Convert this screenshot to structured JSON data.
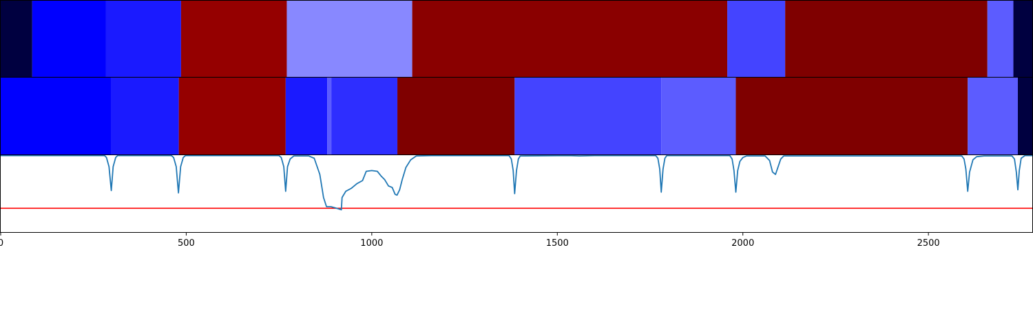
{
  "chart_data": [
    {
      "type": "heatmap",
      "title": "",
      "xlim": [
        0,
        2780
      ],
      "colors": {
        "deep_blue": "#0000ff",
        "mid_blue": "#1a1aff",
        "blue2": "#2e2eff",
        "light_blue": "#8888ff",
        "violet": "#4444ff",
        "violet2": "#5c5cff",
        "dark_red": "#8a0000",
        "red2": "#950000",
        "maroon": "#7f0000",
        "navy": "#000040"
      },
      "segments": [
        {
          "x0": 0,
          "x1": 85,
          "color": "#000040"
        },
        {
          "x0": 85,
          "x1": 283,
          "color": "#0000ff"
        },
        {
          "x0": 283,
          "x1": 486,
          "color": "#1a1aff"
        },
        {
          "x0": 486,
          "x1": 771,
          "color": "#950000"
        },
        {
          "x0": 771,
          "x1": 1109,
          "color": "#8888ff"
        },
        {
          "x0": 1109,
          "x1": 1958,
          "color": "#8a0000"
        },
        {
          "x0": 1958,
          "x1": 2114,
          "color": "#4444ff"
        },
        {
          "x0": 2114,
          "x1": 2659,
          "color": "#7f0000"
        },
        {
          "x0": 2659,
          "x1": 2729,
          "color": "#5c5cff"
        },
        {
          "x0": 2729,
          "x1": 2780,
          "color": "#000040"
        }
      ]
    },
    {
      "type": "heatmap",
      "title": "",
      "xlim": [
        0,
        2780
      ],
      "segments": [
        {
          "x0": 0,
          "x1": 298,
          "color": "#0000ff"
        },
        {
          "x0": 298,
          "x1": 480,
          "color": "#1a1aff"
        },
        {
          "x0": 480,
          "x1": 768,
          "color": "#950000"
        },
        {
          "x0": 768,
          "x1": 880,
          "color": "#1a1aff"
        },
        {
          "x0": 880,
          "x1": 891,
          "color": "#5c5cff"
        },
        {
          "x0": 891,
          "x1": 1069,
          "color": "#2e2eff"
        },
        {
          "x0": 1069,
          "x1": 1385,
          "color": "#7f0000"
        },
        {
          "x0": 1385,
          "x1": 1780,
          "color": "#4444ff"
        },
        {
          "x0": 1780,
          "x1": 1981,
          "color": "#5c5cff"
        },
        {
          "x0": 1981,
          "x1": 2606,
          "color": "#7f0000"
        },
        {
          "x0": 2606,
          "x1": 2741,
          "color": "#5c5cff"
        },
        {
          "x0": 2741,
          "x1": 2780,
          "color": "#000040"
        }
      ]
    },
    {
      "type": "line",
      "title": "",
      "xlabel": "",
      "ylabel": "",
      "xlim": [
        0,
        2780
      ],
      "ylim": [
        0,
        1
      ],
      "grid": false,
      "x_ticks": [
        0,
        500,
        1000,
        1500,
        2000,
        2500
      ],
      "x_tick_labels": [
        "0",
        "500",
        "1000",
        "1500",
        "2000",
        "2500"
      ],
      "line_color": "#1f77b4",
      "threshold": {
        "value": 0.31,
        "color": "#ff0000"
      },
      "series": [
        {
          "values": [
            [
              0,
              0.995
            ],
            [
              280,
              0.995
            ],
            [
              285,
              0.97
            ],
            [
              292,
              0.85
            ],
            [
              298,
              0.54
            ],
            [
              303,
              0.85
            ],
            [
              310,
              0.97
            ],
            [
              315,
              0.995
            ],
            [
              460,
              0.995
            ],
            [
              466,
              0.97
            ],
            [
              473,
              0.85
            ],
            [
              479,
              0.51
            ],
            [
              485,
              0.85
            ],
            [
              492,
              0.97
            ],
            [
              498,
              0.995
            ],
            [
              750,
              0.995
            ],
            [
              756,
              0.97
            ],
            [
              763,
              0.85
            ],
            [
              768,
              0.53
            ],
            [
              773,
              0.85
            ],
            [
              780,
              0.95
            ],
            [
              790,
              0.99
            ],
            [
              830,
              0.99
            ],
            [
              845,
              0.96
            ],
            [
              860,
              0.75
            ],
            [
              870,
              0.45
            ],
            [
              878,
              0.33
            ],
            [
              890,
              0.33
            ],
            [
              905,
              0.31
            ],
            [
              918,
              0.29
            ],
            [
              920,
              0.45
            ],
            [
              930,
              0.53
            ],
            [
              945,
              0.57
            ],
            [
              960,
              0.63
            ],
            [
              975,
              0.67
            ],
            [
              985,
              0.79
            ],
            [
              1000,
              0.8
            ],
            [
              1015,
              0.79
            ],
            [
              1025,
              0.73
            ],
            [
              1035,
              0.68
            ],
            [
              1045,
              0.6
            ],
            [
              1055,
              0.58
            ],
            [
              1063,
              0.49
            ],
            [
              1068,
              0.48
            ],
            [
              1075,
              0.55
            ],
            [
              1082,
              0.68
            ],
            [
              1092,
              0.84
            ],
            [
              1105,
              0.94
            ],
            [
              1120,
              0.99
            ],
            [
              1160,
              0.995
            ],
            [
              1370,
              0.995
            ],
            [
              1376,
              0.95
            ],
            [
              1381,
              0.8
            ],
            [
              1385,
              0.5
            ],
            [
              1390,
              0.8
            ],
            [
              1395,
              0.95
            ],
            [
              1400,
              0.99
            ],
            [
              1530,
              0.995
            ],
            [
              1560,
              0.99
            ],
            [
              1600,
              0.995
            ],
            [
              1765,
              0.995
            ],
            [
              1771,
              0.96
            ],
            [
              1776,
              0.82
            ],
            [
              1780,
              0.52
            ],
            [
              1785,
              0.82
            ],
            [
              1790,
              0.96
            ],
            [
              1795,
              0.995
            ],
            [
              1965,
              0.995
            ],
            [
              1971,
              0.95
            ],
            [
              1976,
              0.8
            ],
            [
              1981,
              0.52
            ],
            [
              1986,
              0.8
            ],
            [
              1992,
              0.92
            ],
            [
              2000,
              0.97
            ],
            [
              2010,
              0.99
            ],
            [
              2060,
              0.99
            ],
            [
              2072,
              0.93
            ],
            [
              2080,
              0.78
            ],
            [
              2088,
              0.75
            ],
            [
              2095,
              0.85
            ],
            [
              2102,
              0.95
            ],
            [
              2110,
              0.99
            ],
            [
              2590,
              0.99
            ],
            [
              2596,
              0.95
            ],
            [
              2601,
              0.82
            ],
            [
              2606,
              0.53
            ],
            [
              2611,
              0.78
            ],
            [
              2620,
              0.94
            ],
            [
              2630,
              0.98
            ],
            [
              2650,
              0.99
            ],
            [
              2725,
              0.99
            ],
            [
              2732,
              0.95
            ],
            [
              2737,
              0.78
            ],
            [
              2741,
              0.55
            ],
            [
              2745,
              0.8
            ],
            [
              2750,
              0.96
            ],
            [
              2760,
              0.995
            ],
            [
              2780,
              0.995
            ]
          ]
        }
      ]
    }
  ]
}
